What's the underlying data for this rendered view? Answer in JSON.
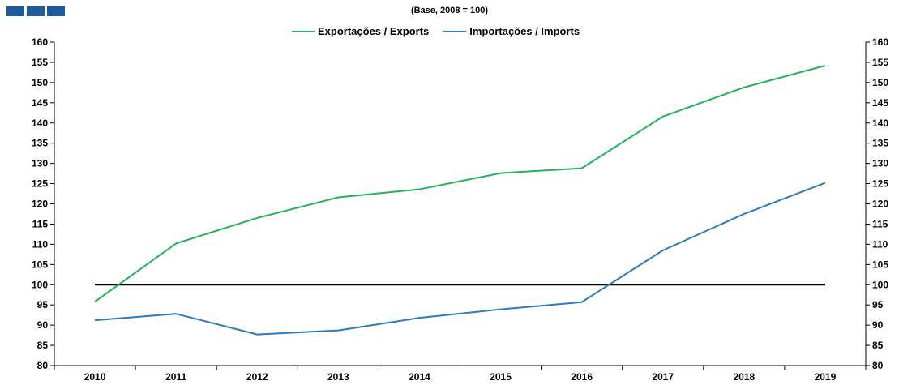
{
  "chart_data": {
    "type": "line",
    "subtitle": "(Base, 2008 = 100)",
    "categories": [
      "2010",
      "2011",
      "2012",
      "2013",
      "2014",
      "2015",
      "2016",
      "2017",
      "2018",
      "2019"
    ],
    "ylim": [
      80,
      160
    ],
    "yticks": [
      80,
      85,
      90,
      95,
      100,
      105,
      110,
      115,
      120,
      125,
      130,
      135,
      140,
      145,
      150,
      155,
      160
    ],
    "secondary_y_axis": true,
    "reference_line": 100,
    "legend_position": "top-center",
    "grid": false,
    "series": [
      {
        "name": "Exportações / Exports",
        "color": "#22b35a",
        "values": [
          95.8,
          110.2,
          116.5,
          121.6,
          123.6,
          127.6,
          128.8,
          141.6,
          148.8,
          154.2
        ]
      },
      {
        "name": "Importações / Imports",
        "color": "#2b7bbd",
        "values": [
          91.2,
          92.8,
          87.7,
          88.7,
          91.8,
          93.9,
          95.7,
          108.5,
          117.5,
          125.2
        ]
      }
    ],
    "reference_color": "#000000"
  }
}
